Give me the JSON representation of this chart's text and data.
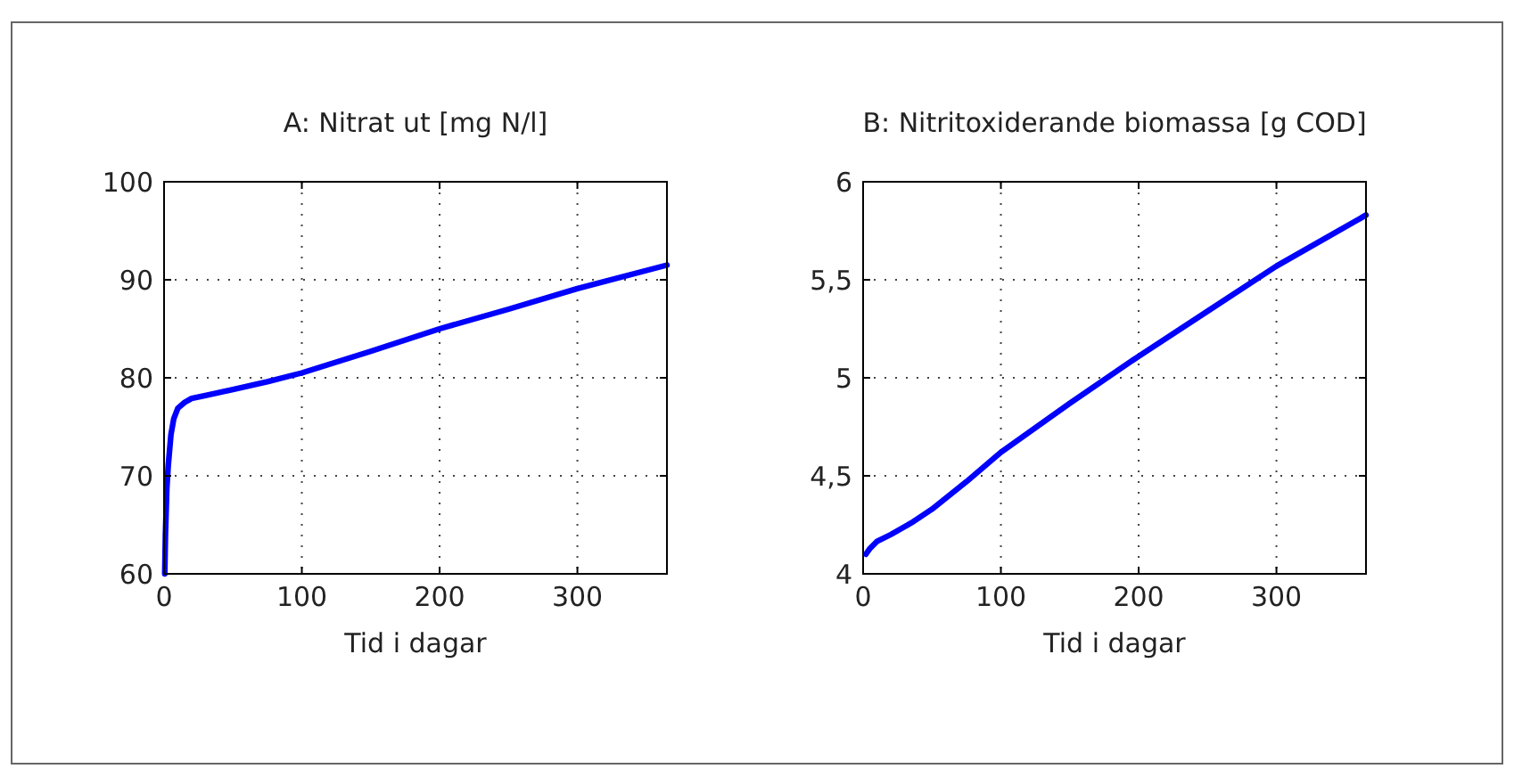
{
  "chart_data": [
    {
      "type": "line",
      "title": "A: Nitrat ut [mg N/l]",
      "xlabel": "Tid i dagar",
      "x": [
        0.5,
        1,
        2,
        3,
        5,
        7,
        10,
        15,
        20,
        30,
        50,
        75,
        100,
        150,
        200,
        250,
        300,
        365
      ],
      "series": [
        {
          "color": "#0000ff",
          "values": [
            60,
            64,
            68.7,
            71,
            74.2,
            75.8,
            76.9,
            77.5,
            77.9,
            78.2,
            78.8,
            79.6,
            80.5,
            82.7,
            85,
            87,
            89.1,
            91.5
          ]
        }
      ],
      "xlim": [
        0,
        365
      ],
      "xticks": [
        0,
        100,
        200,
        300
      ],
      "ylim": [
        60,
        100
      ],
      "yticks": [
        60,
        70,
        80,
        90,
        100
      ],
      "grid": true,
      "line_style": "solid",
      "marker": "none"
    },
    {
      "type": "line",
      "title": "B: Nitritoxiderande biomassa [g COD]",
      "xlabel": "Tid i dagar",
      "x": [
        2,
        5,
        10,
        20,
        35,
        50,
        75,
        100,
        150,
        200,
        250,
        300,
        365
      ],
      "series": [
        {
          "color": "#0000ff",
          "values": [
            4.1,
            4.13,
            4.165,
            4.2,
            4.26,
            4.33,
            4.47,
            4.62,
            4.87,
            5.11,
            5.34,
            5.57,
            5.83
          ]
        }
      ],
      "xlim": [
        0,
        365
      ],
      "xticks": [
        0,
        100,
        200,
        300
      ],
      "ylim": [
        4,
        6
      ],
      "yticks": [
        4,
        {
          "value": 4.5,
          "label": "4,5"
        },
        5,
        {
          "value": 5.5,
          "label": "5,5"
        },
        6
      ],
      "grid": true,
      "line_style": "solid",
      "marker": "none"
    }
  ]
}
